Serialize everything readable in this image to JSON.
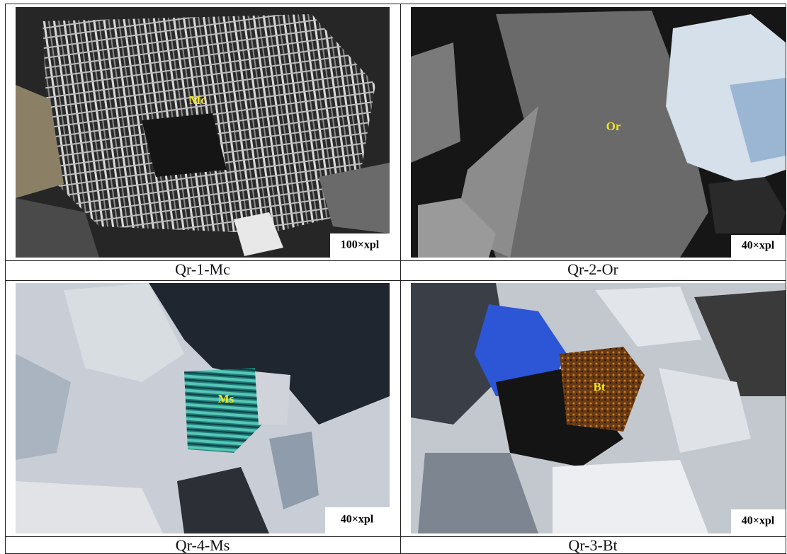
{
  "panels": [
    {
      "label": "Mc",
      "magnification": "100×xpl",
      "caption": "Qr-1-Mc"
    },
    {
      "label": "Or",
      "magnification": "40×xpl",
      "caption": "Qr-2-Or"
    },
    {
      "label": "Ms",
      "magnification": "40×xpl",
      "caption": "Qr-4-Ms"
    },
    {
      "label": "Bt",
      "magnification": "40×xpl",
      "caption": "Qr-3-Bt"
    }
  ]
}
